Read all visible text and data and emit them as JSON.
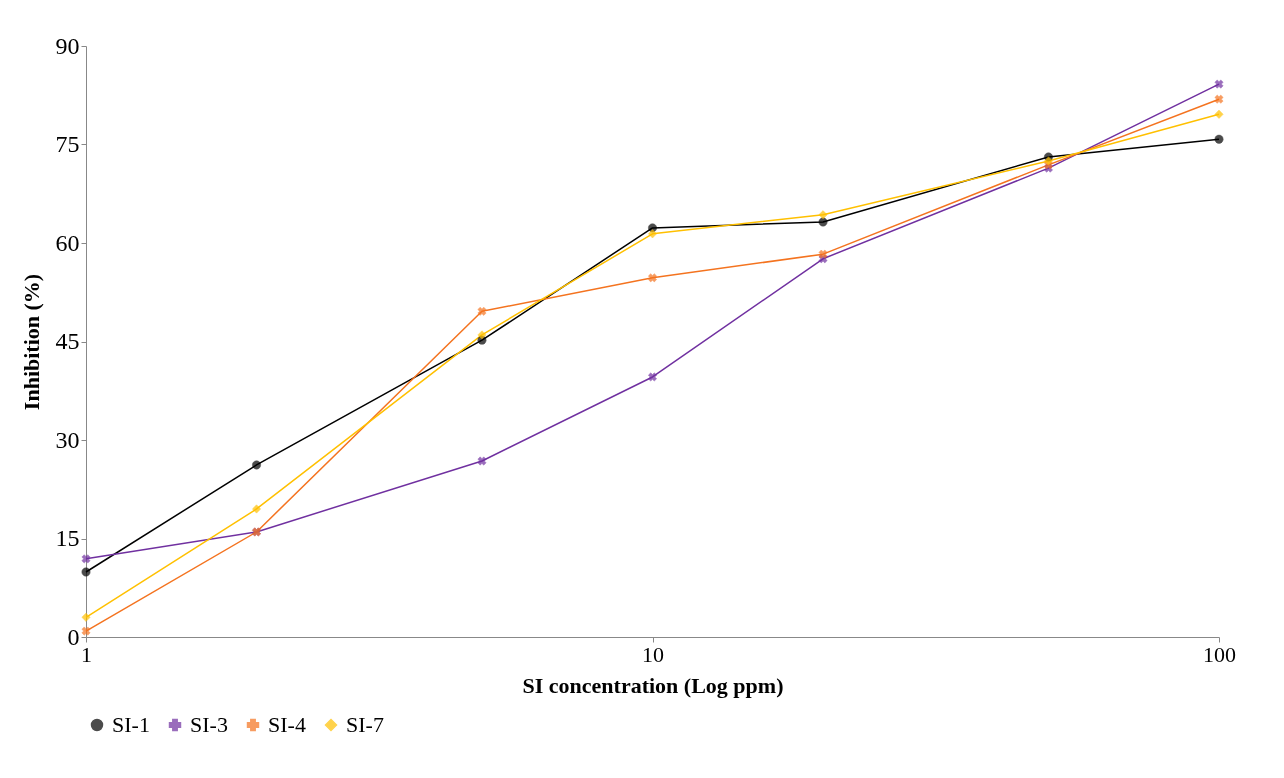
{
  "chart_data": {
    "type": "line",
    "xlabel": "SI concentration (Log ppm)",
    "ylabel": "Inhibition (%)",
    "x": [
      1,
      2,
      5,
      10,
      20,
      50,
      100
    ],
    "series": [
      {
        "name": "SI-1",
        "color": "#000000",
        "marker": "circle",
        "values": [
          9.9,
          26.2,
          45.2,
          62.3,
          63.2,
          73.1,
          75.8
        ]
      },
      {
        "name": "SI-3",
        "color": "#7030a0",
        "marker": "cross",
        "values": [
          11.9,
          16.0,
          26.8,
          39.6,
          57.6,
          71.4,
          84.2
        ]
      },
      {
        "name": "SI-4",
        "color": "#f4731f",
        "marker": "cross",
        "values": [
          0.9,
          16.0,
          49.6,
          54.7,
          58.3,
          71.9,
          81.9
        ]
      },
      {
        "name": "SI-7",
        "color": "#ffc000",
        "marker": "diamond",
        "values": [
          3.0,
          19.5,
          46.0,
          61.4,
          64.3,
          72.5,
          79.6
        ]
      }
    ],
    "xlim": [
      1,
      100
    ],
    "xticks": [
      1,
      10,
      100
    ],
    "ylim": [
      0,
      90
    ],
    "yticks": [
      0,
      15,
      30,
      45,
      60,
      75,
      90
    ],
    "log": "x",
    "grid": false,
    "legend": "bottom"
  }
}
